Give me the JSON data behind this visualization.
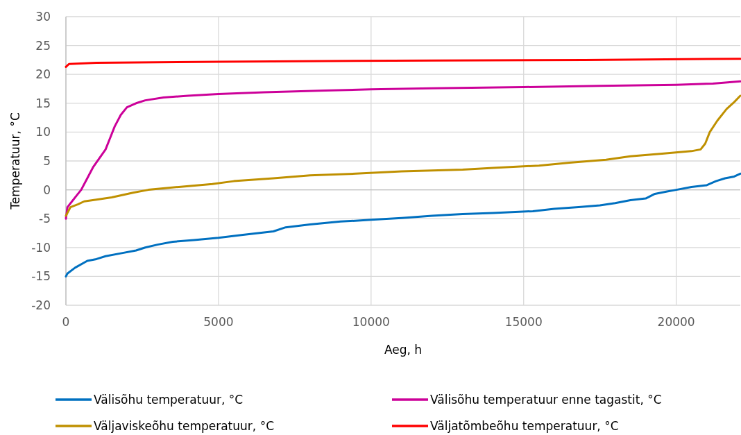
{
  "chart_data": {
    "type": "line",
    "xlabel": "Aeg, h",
    "ylabel": "Temperatuur, °C",
    "xlim": [
      0,
      22100
    ],
    "xticks": [
      0,
      5000,
      10000,
      15000,
      20000
    ],
    "ylim": [
      -20,
      30
    ],
    "yticks": [
      -20,
      -15,
      -10,
      -5,
      0,
      5,
      10,
      15,
      20,
      25,
      30
    ],
    "grid": true,
    "legend": "bottom",
    "line_style": "solid",
    "marker": "none",
    "series": [
      {
        "name": "Välisõhu temperatuur, °C",
        "color": "#0070c0",
        "x": [
          0,
          50,
          300,
          700,
          1000,
          1300,
          1800,
          2300,
          2600,
          3000,
          3500,
          4200,
          5000,
          5800,
          6800,
          7200,
          8000,
          9000,
          10000,
          11000,
          12000,
          13000,
          14000,
          15300,
          16000,
          16800,
          17500,
          18000,
          18500,
          19000,
          19300,
          19700,
          20000,
          20500,
          21000,
          21300,
          21600,
          21900,
          22100
        ],
        "values": [
          -15,
          -14.5,
          -13.5,
          -12.3,
          -12,
          -11.5,
          -11,
          -10.5,
          -10,
          -9.5,
          -9,
          -8.7,
          -8.3,
          -7.8,
          -7.2,
          -6.5,
          -6,
          -5.5,
          -5.2,
          -4.9,
          -4.5,
          -4.2,
          -4,
          -3.7,
          -3.3,
          -3,
          -2.7,
          -2.3,
          -1.8,
          -1.5,
          -0.7,
          -0.3,
          0,
          0.5,
          0.8,
          1.5,
          2,
          2.3,
          2.8
        ]
      },
      {
        "name": "Välisõhu temperatuur enne tagastit, °C",
        "color": "#cc0099",
        "x": [
          0,
          50,
          200,
          350,
          500,
          700,
          900,
          1100,
          1300,
          1450,
          1600,
          1800,
          2000,
          2300,
          2600,
          3200,
          4000,
          5000,
          6500,
          8500,
          10000,
          12000,
          15000,
          17500,
          20000,
          21200,
          22100
        ],
        "values": [
          -5,
          -3,
          -2,
          -1,
          0,
          2,
          4,
          5.5,
          7,
          9,
          11,
          13,
          14.3,
          15,
          15.5,
          16,
          16.3,
          16.6,
          16.9,
          17.2,
          17.4,
          17.6,
          17.8,
          18,
          18.2,
          18.4,
          18.8
        ]
      },
      {
        "name": "Väljaviskeõhu temperatuur, °C",
        "color": "#bf9000",
        "x": [
          0,
          150,
          400,
          600,
          1000,
          1500,
          2200,
          2700,
          3700,
          4800,
          5500,
          6800,
          8000,
          9500,
          11000,
          13000,
          14000,
          15500,
          16500,
          17700,
          18500,
          19600,
          20500,
          20800,
          20950,
          21100,
          21350,
          21650,
          21900,
          22100
        ],
        "values": [
          -4.5,
          -3,
          -2.5,
          -2,
          -1.7,
          -1.3,
          -0.5,
          0,
          0.5,
          1,
          1.5,
          2,
          2.5,
          2.8,
          3.2,
          3.5,
          3.8,
          4.2,
          4.7,
          5.2,
          5.8,
          6.3,
          6.7,
          7,
          8,
          10,
          12,
          14,
          15.2,
          16.3
        ]
      },
      {
        "name": "Väljatõmbeõhu temperatuur, °C",
        "color": "#ff0000",
        "x": [
          0,
          100,
          1000,
          5000,
          12000,
          17000,
          22100
        ],
        "values": [
          21.3,
          21.8,
          22,
          22.2,
          22.4,
          22.5,
          22.7
        ]
      }
    ]
  }
}
